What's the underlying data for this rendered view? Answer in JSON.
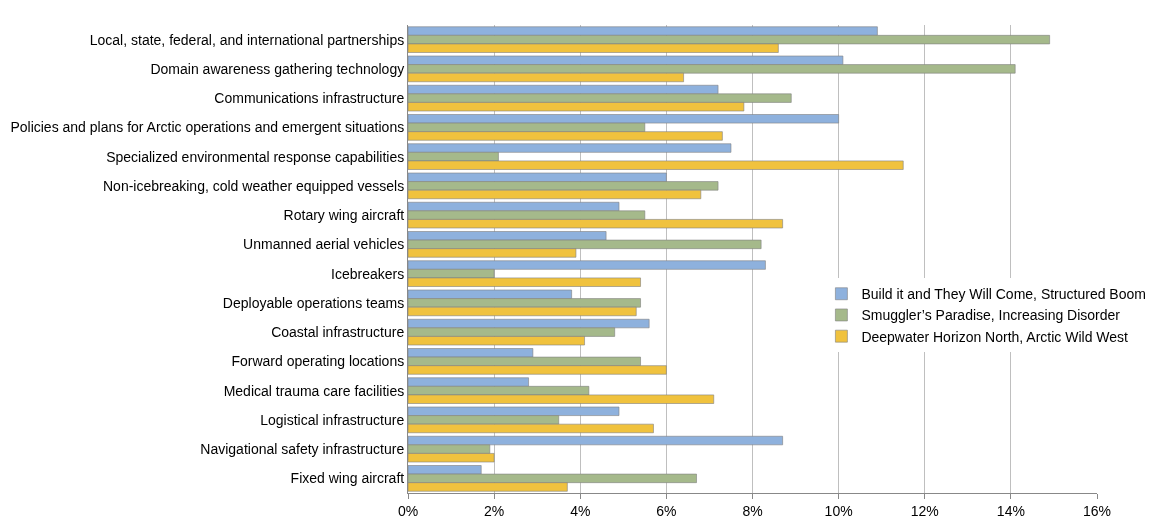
{
  "chart_data": {
    "type": "bar",
    "orientation": "horizontal",
    "categories": [
      "Local, state, federal, and international partnerships",
      "Domain awareness gathering technology",
      "Communications infrastructure",
      "Policies and plans for Arctic operations and emergent situations",
      "Specialized environmental response capabilities",
      "Non-icebreaking, cold weather equipped vessels",
      "Rotary wing aircraft",
      "Unmanned aerial vehicles",
      "Icebreakers",
      "Deployable operations teams",
      "Coastal infrastructure",
      "Forward operating locations",
      "Medical trauma care facilities",
      "Logistical infrastructure",
      "Navigational safety infrastructure",
      "Fixed wing aircraft"
    ],
    "series": [
      {
        "name": "Build it and They Will Come, Structured Boom",
        "color": "#8eb1dd",
        "values": [
          10.9,
          10.1,
          7.2,
          10.0,
          7.5,
          6.0,
          4.9,
          4.6,
          8.3,
          3.8,
          5.6,
          2.9,
          2.8,
          4.9,
          8.7,
          1.7
        ]
      },
      {
        "name": "Smuggler’s Paradise, Increasing Disorder",
        "color": "#a5b98b",
        "values": [
          14.9,
          14.1,
          8.9,
          5.5,
          2.1,
          7.2,
          5.5,
          8.2,
          2.0,
          5.4,
          4.8,
          5.4,
          4.2,
          3.5,
          1.9,
          6.7
        ]
      },
      {
        "name": "Deepwater Horizon North, Arctic Wild West",
        "color": "#f0c23e",
        "values": [
          8.6,
          6.4,
          7.8,
          7.3,
          11.5,
          6.8,
          8.7,
          3.9,
          5.4,
          5.3,
          4.1,
          6.0,
          7.1,
          5.7,
          2.0,
          3.7
        ]
      }
    ],
    "xlim": [
      0,
      16
    ],
    "xticks": [
      {
        "value": 0,
        "label": "0%"
      },
      {
        "value": 2,
        "label": "2%"
      },
      {
        "value": 4,
        "label": "4%"
      },
      {
        "value": 6,
        "label": "6%"
      },
      {
        "value": 8,
        "label": "8%"
      },
      {
        "value": 10,
        "label": "10%"
      },
      {
        "value": 12,
        "label": "12%"
      },
      {
        "value": 14,
        "label": "14%"
      },
      {
        "value": 16,
        "label": "16%"
      }
    ],
    "grid": "x",
    "legend": "right"
  }
}
